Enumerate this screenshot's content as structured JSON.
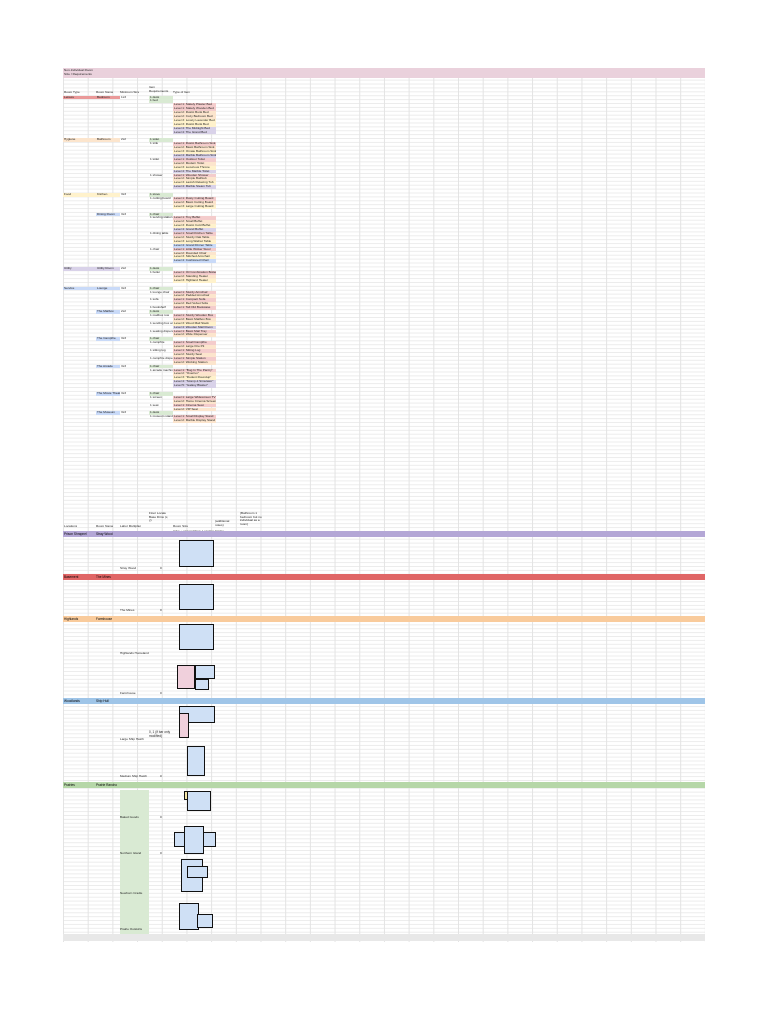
{
  "title_lines": [
    "Non-Individual Room",
    "Size / Requirements"
  ],
  "colors": {
    "title_bg": "#ead1dc",
    "pink": "#f4cccc",
    "salmon": "#ea9999",
    "orange": "#fce5cd",
    "yellow": "#fff2cc",
    "purple": "#d9d2e9",
    "blue": "#c9daf8",
    "green": "#d9ead3",
    "band_purple": "#b4a7d6",
    "band_red": "#e06666",
    "band_orange": "#f9cb9c",
    "band_blue": "#9fc5e8",
    "band_green": "#b6d7a8"
  },
  "headers": [
    "Room Type",
    "Room Name",
    "Minimum Size",
    "Item Requirements",
    "Type of Item"
  ],
  "rows": [
    {
      "room_type": "Leisure",
      "room_name": "Bedroom",
      "min_size": "1x3",
      "req": "1 desk",
      "item": "",
      "bg": "pink"
    },
    {
      "room_type": "",
      "room_name": "",
      "min_size": "",
      "req": "1 bed",
      "item": "",
      "bg": ""
    },
    {
      "room_type": "",
      "room_name": "",
      "min_size": "",
      "req": "",
      "item": "Level 1: Stately Plaster Bed",
      "bg": "pink"
    },
    {
      "room_type": "",
      "room_name": "",
      "min_size": "",
      "req": "",
      "item": "Level 1: Stately Wooden Bed",
      "bg": "pink"
    },
    {
      "room_type": "",
      "room_name": "",
      "min_size": "",
      "req": "",
      "item": "Level 2: Rustic Bunk Bed",
      "bg": "orange"
    },
    {
      "room_type": "",
      "room_name": "",
      "min_size": "",
      "req": "",
      "item": "Level 2: Cozy Bedroom Bed",
      "bg": "orange"
    },
    {
      "room_type": "",
      "room_name": "",
      "min_size": "",
      "req": "",
      "item": "Level 3: Lovely Lavender Bed",
      "bg": "yellow"
    },
    {
      "room_type": "",
      "room_name": "",
      "min_size": "",
      "req": "",
      "item": "Level 3: Rustic Bunk Bed",
      "bg": "yellow"
    },
    {
      "room_type": "",
      "room_name": "",
      "min_size": "",
      "req": "",
      "item": "Level 4: The Midnight Bed",
      "bg": "purple"
    },
    {
      "room_type": "",
      "room_name": "",
      "min_size": "",
      "req": "",
      "item": "Level 4: The Grand Bed",
      "bg": "purple"
    },
    {
      "room_type": "",
      "room_name": "",
      "min_size": "",
      "req": "",
      "item": "",
      "bg": ""
    },
    {
      "room_type": "Hygiene",
      "room_name": "Bathroom",
      "min_size": "2x2",
      "req": "1 toilet",
      "item": "",
      "bg": "orange"
    },
    {
      "room_type": "",
      "room_name": "",
      "min_size": "",
      "req": "1 sink",
      "item": "Level 1: Rustic Bathroom Sink",
      "bg": "pink"
    },
    {
      "room_type": "",
      "room_name": "",
      "min_size": "",
      "req": "",
      "item": "Level 2: Basic Bathroom Sink",
      "bg": "orange"
    },
    {
      "room_type": "",
      "room_name": "",
      "min_size": "",
      "req": "",
      "item": "Level 3: Ornate Bathroom Sink",
      "bg": "yellow"
    },
    {
      "room_type": "",
      "room_name": "",
      "min_size": "",
      "req": "",
      "item": "Level 4: Marble Bathroom Sink",
      "bg": "purple"
    },
    {
      "room_type": "",
      "room_name": "",
      "min_size": "",
      "req": "1 toilet",
      "item": "Level 1: Outdoor Toilet",
      "bg": "pink"
    },
    {
      "room_type": "",
      "room_name": "",
      "min_size": "",
      "req": "",
      "item": "Level 2: Modern Toilet",
      "bg": "orange"
    },
    {
      "room_type": "",
      "room_name": "",
      "min_size": "",
      "req": "",
      "item": "Level 3: Luxurious Throne",
      "bg": "yellow"
    },
    {
      "room_type": "",
      "room_name": "",
      "min_size": "",
      "req": "",
      "item": "Level 4: The Marble Toilet",
      "bg": "purple"
    },
    {
      "room_type": "",
      "room_name": "",
      "min_size": "",
      "req": "1 shower",
      "item": "Level 1: Wooden Shower",
      "bg": "pink"
    },
    {
      "room_type": "",
      "room_name": "",
      "min_size": "",
      "req": "",
      "item": "Level 2: Simple Bathtub",
      "bg": "orange"
    },
    {
      "room_type": "",
      "room_name": "",
      "min_size": "",
      "req": "",
      "item": "Level 3: Lavish Relaxing Tub",
      "bg": "yellow"
    },
    {
      "room_type": "",
      "room_name": "",
      "min_size": "",
      "req": "",
      "item": "Level 4: Marble Steam Tub",
      "bg": "purple"
    },
    {
      "room_type": "",
      "room_name": "",
      "min_size": "",
      "req": "",
      "item": "",
      "bg": ""
    },
    {
      "room_type": "Food",
      "room_name": "Kitchen",
      "min_size": "3x3",
      "req": "1 stove",
      "item": "",
      "bg": "yellow"
    },
    {
      "room_type": "",
      "room_name": "",
      "min_size": "",
      "req": "1 cutting board",
      "item": "Level 1: Rusty Cutting Board",
      "bg": "pink"
    },
    {
      "room_type": "",
      "room_name": "",
      "min_size": "",
      "req": "",
      "item": "Level 2: Basic Cutting Board",
      "bg": "orange"
    },
    {
      "room_type": "",
      "room_name": "",
      "min_size": "",
      "req": "",
      "item": "Level 3: Large Cutting Board",
      "bg": "yellow"
    },
    {
      "room_type": "",
      "room_name": "",
      "min_size": "",
      "req": "",
      "item": "",
      "bg": ""
    },
    {
      "room_type": "",
      "room_name": "Dining Room",
      "min_size": "3x3",
      "req": "1 chair",
      "item": "",
      "bg": "yellow"
    },
    {
      "room_type": "",
      "room_name": "",
      "min_size": "",
      "req": "1 serving station",
      "item": "Level 1: Tiny Buffet",
      "bg": "pink"
    },
    {
      "room_type": "",
      "room_name": "",
      "min_size": "",
      "req": "",
      "item": "Level 2: Small Buffet",
      "bg": "orange"
    },
    {
      "room_type": "",
      "room_name": "",
      "min_size": "",
      "req": "",
      "item": "Level 3: Rustic Cold Buffet",
      "bg": "yellow"
    },
    {
      "room_type": "",
      "room_name": "",
      "min_size": "",
      "req": "",
      "item": "Level 4: Grand Buffet",
      "bg": "purple"
    },
    {
      "room_type": "",
      "room_name": "",
      "min_size": "",
      "req": "1 dining table",
      "item": "Level 1: Small Kitchen Table",
      "bg": "pink"
    },
    {
      "room_type": "",
      "room_name": "",
      "min_size": "",
      "req": "",
      "item": "Level 2: Sturdy Oak Table",
      "bg": "orange"
    },
    {
      "room_type": "",
      "room_name": "",
      "min_size": "",
      "req": "",
      "item": "Level 3: Long Walnut Table",
      "bg": "yellow"
    },
    {
      "room_type": "",
      "room_name": "",
      "min_size": "",
      "req": "",
      "item": "Level 4: Grand Dinner Table",
      "bg": "blue"
    },
    {
      "room_type": "",
      "room_name": "",
      "min_size": "",
      "req": "1 chair",
      "item": "Level 1: Little Wicker Stool",
      "bg": "pink"
    },
    {
      "room_type": "",
      "room_name": "",
      "min_size": "",
      "req": "",
      "item": "Level 2: Rounded Chair",
      "bg": "orange"
    },
    {
      "room_type": "",
      "room_name": "",
      "min_size": "",
      "req": "",
      "item": "Level 3: Stitched Armchair",
      "bg": "yellow"
    },
    {
      "room_type": "",
      "room_name": "",
      "min_size": "",
      "req": "",
      "item": "Level 4: Cushioned Chair",
      "bg": "blue"
    },
    {
      "room_type": "",
      "room_name": "",
      "min_size": "",
      "req": "",
      "item": "",
      "bg": ""
    },
    {
      "room_type": "Utility",
      "room_name": "Utility Room",
      "min_size": "2x2",
      "req": "1 desk",
      "item": "",
      "bg": "purple"
    },
    {
      "room_type": "",
      "room_name": "",
      "min_size": "",
      "req": "1 boiler",
      "item": "Level 1: Oil Combination Boiler",
      "bg": "pink"
    },
    {
      "room_type": "",
      "room_name": "",
      "min_size": "",
      "req": "",
      "item": "Level 2: Standing Heater",
      "bg": "orange"
    },
    {
      "room_type": "",
      "room_name": "",
      "min_size": "",
      "req": "",
      "item": "Level 3: Highland Heater",
      "bg": "yellow"
    },
    {
      "room_type": "",
      "room_name": "",
      "min_size": "",
      "req": "",
      "item": "",
      "bg": ""
    },
    {
      "room_type": "Service",
      "room_name": "Lounge",
      "min_size": "3x3",
      "req": "1 chair",
      "item": "",
      "bg": "blue"
    },
    {
      "room_type": "",
      "room_name": "",
      "min_size": "",
      "req": "1 lounge chair",
      "item": "Level 1: Sturdy Armchair",
      "bg": "pink"
    },
    {
      "room_type": "",
      "room_name": "",
      "min_size": "",
      "req": "",
      "item": "Level 2: Padded Armchair",
      "bg": "orange"
    },
    {
      "room_type": "",
      "room_name": "",
      "min_size": "",
      "req": "1 sofa",
      "item": "Level 1: Compact Sofa",
      "bg": "pink"
    },
    {
      "room_type": "",
      "room_name": "",
      "min_size": "",
      "req": "",
      "item": "Level 2: Red Velvet Sofa",
      "bg": "orange"
    },
    {
      "room_type": "",
      "room_name": "",
      "min_size": "",
      "req": "1 bookshelf",
      "item": "Level 1: Tall Old Bookcase",
      "bg": "pink"
    },
    {
      "room_type": "",
      "room_name": "The Mailbox",
      "min_size": "2x2",
      "req": "1 desk",
      "item": "",
      "bg": "blue"
    },
    {
      "room_type": "",
      "room_name": "",
      "min_size": "",
      "req": "1 mailbox row",
      "item": "Level 1: Sturdy Wooden Box",
      "bg": "pink"
    },
    {
      "room_type": "",
      "room_name": "",
      "min_size": "",
      "req": "",
      "item": "Level 2: Basic Mailbox Box",
      "bg": "orange"
    },
    {
      "room_type": "",
      "room_name": "",
      "min_size": "",
      "req": "1 sending box area",
      "item": "Level 3: Wood Mail Stack",
      "bg": "yellow"
    },
    {
      "room_type": "",
      "room_name": "",
      "min_size": "",
      "req": "",
      "item": "Level 4: Wooden Mail Room",
      "bg": "purple"
    },
    {
      "room_type": "",
      "room_name": "",
      "min_size": "",
      "req": "1 seating dispenser",
      "item": "Level 1: Basic Mail Tray",
      "bg": "pink"
    },
    {
      "room_type": "",
      "room_name": "",
      "min_size": "",
      "req": "",
      "item": "Level 2: Wide Dispenser",
      "bg": "orange"
    },
    {
      "room_type": "",
      "room_name": "The Campfire",
      "min_size": "3x3",
      "req": "1 chair",
      "item": "",
      "bg": "blue"
    },
    {
      "room_type": "",
      "room_name": "",
      "min_size": "",
      "req": "1 campfire",
      "item": "Level 1: Small Campfire",
      "bg": "pink"
    },
    {
      "room_type": "",
      "room_name": "",
      "min_size": "",
      "req": "",
      "item": "Level 2: Large Fire Pit",
      "bg": "orange"
    },
    {
      "room_type": "",
      "room_name": "",
      "min_size": "",
      "req": "1 sitting log",
      "item": "Level 1: Sitting Log",
      "bg": "pink"
    },
    {
      "room_type": "",
      "room_name": "",
      "min_size": "",
      "req": "",
      "item": "Level 2: Sturdy Seat",
      "bg": "orange"
    },
    {
      "room_type": "",
      "room_name": "",
      "min_size": "",
      "req": "1 campfire dispenser",
      "item": "Level 1: Simple Station",
      "bg": "pink"
    },
    {
      "room_type": "",
      "room_name": "",
      "min_size": "",
      "req": "",
      "item": "Level 2: Working Station",
      "bg": "orange"
    },
    {
      "room_type": "",
      "room_name": "The Arcade",
      "min_size": "3x3",
      "req": "1 chair",
      "item": "",
      "bg": "blue"
    },
    {
      "room_type": "",
      "room_name": "",
      "min_size": "",
      "req": "1 arcade machine",
      "item": "Level 1: \"Bug In The Pantry\"",
      "bg": "pink"
    },
    {
      "room_type": "",
      "room_name": "",
      "min_size": "",
      "req": "",
      "item": "Level 2: \"Overrun\"",
      "bg": "orange"
    },
    {
      "room_type": "",
      "room_name": "",
      "min_size": "",
      "req": "",
      "item": "Level 3: \"Rodent Roundup\"",
      "bg": "yellow"
    },
    {
      "room_type": "",
      "room_name": "",
      "min_size": "",
      "req": "",
      "item": "Level 4: \"Stomp-it Simulator\"",
      "bg": "purple"
    },
    {
      "room_type": "",
      "room_name": "",
      "min_size": "",
      "req": "",
      "item": "Level 5: \"Galaxy Blaster\"",
      "bg": "purple"
    },
    {
      "room_type": "",
      "room_name": "",
      "min_size": "",
      "req": "",
      "item": "",
      "bg": ""
    },
    {
      "room_type": "",
      "room_name": "The Movie Theatre",
      "min_size": "3x3",
      "req": "1 chair",
      "item": "",
      "bg": "blue"
    },
    {
      "room_type": "",
      "room_name": "",
      "min_size": "",
      "req": "1 screen",
      "item": "Level 1: Large Widescreen TV",
      "bg": "pink"
    },
    {
      "room_type": "",
      "room_name": "",
      "min_size": "",
      "req": "",
      "item": "Level 2: Home Cinema Screen",
      "bg": "orange"
    },
    {
      "room_type": "",
      "room_name": "",
      "min_size": "",
      "req": "1 seat",
      "item": "Level 1: Cinema Seat",
      "bg": "pink"
    },
    {
      "room_type": "",
      "room_name": "",
      "min_size": "",
      "req": "",
      "item": "Level 2: VIP Seat",
      "bg": "orange"
    },
    {
      "room_type": "",
      "room_name": "The Museum",
      "min_size": "3x3",
      "req": "1 desk",
      "item": "",
      "bg": "blue"
    },
    {
      "room_type": "",
      "room_name": "",
      "min_size": "",
      "req": "1 museum stand",
      "item": "Level 1: Small Display Stand",
      "bg": "pink"
    },
    {
      "room_type": "",
      "room_name": "",
      "min_size": "",
      "req": "",
      "item": "Level 2: Marble Display Stand",
      "bg": "orange"
    }
  ],
  "lower_headers": [
    "Locations",
    "Room Name",
    "Labor Multiplier",
    "Floor Locale Base Dims (x, y)",
    "Room Size",
    "(additional notes)",
    "(Bathroom 1 bedroom but no individual as a room)"
  ],
  "locations": [
    {
      "name": "Prison Shrapnel",
      "room": "Stray Wood",
      "band": "band_purple",
      "caption": "Stray Wood",
      "mult": "0"
    },
    {
      "name": "Basement",
      "room": "The Mines",
      "band": "band_red",
      "caption": "The Mines",
      "mult": "0"
    },
    {
      "name": "Highlands",
      "room": "Farmhouse",
      "band": "band_orange",
      "caption": "Highlands Homeland",
      "mult": "0",
      "caption2": "Farmhouse",
      "mult2": "0"
    },
    {
      "name": "Woodlands",
      "room": "Ship Hull",
      "band": "band_blue",
      "caption": "Large Ship Hatch",
      "mult": "0, 1 (if bar only modified)",
      "caption2": "Medium Ship Hatch",
      "mult2": "0"
    },
    {
      "name": "Prairies",
      "room": "Prairie Rancho",
      "band": "band_green",
      "captions": [
        "Baked Goods",
        "Northern Island",
        "Newborn Cradle",
        "Prairie Outskirts"
      ],
      "mults": [
        "0",
        "0",
        "",
        ""
      ]
    }
  ],
  "room_note": "(plus + space) Dims: Location Grid to Room X"
}
